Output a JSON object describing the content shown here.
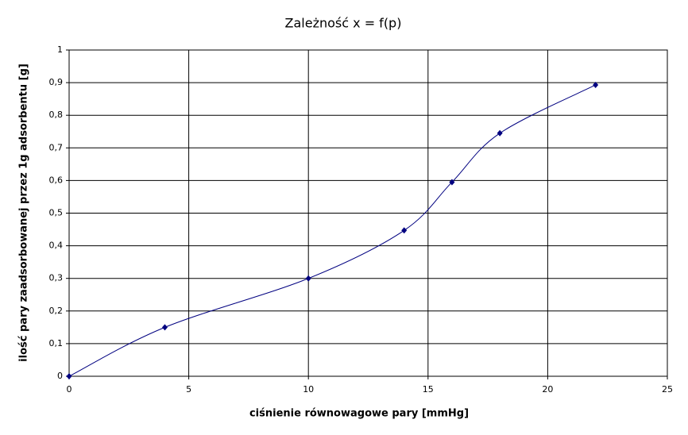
{
  "chart_data": {
    "type": "scatter",
    "title": "Zależność x = f(p)",
    "x_label": "ciśnienie równowagowe pary [mmHg]",
    "y_label": "ilość pary zaadsorbowanej przez 1g adsorbentu [g]",
    "series": [
      {
        "color": "#000080",
        "x": [
          0,
          4,
          10,
          14,
          16,
          18,
          22
        ],
        "values": [
          0,
          0.15,
          0.3,
          0.447,
          0.595,
          0.745,
          0.893
        ]
      }
    ],
    "xlim": [
      0,
      25
    ],
    "xticks": [
      0,
      5,
      10,
      15,
      20,
      25
    ],
    "ylim": [
      0,
      1
    ],
    "yticks": [
      0,
      {
        "value": 0.1,
        "label": "0,1"
      },
      {
        "value": 0.2,
        "label": "0,2"
      },
      {
        "value": 0.3,
        "label": "0,3"
      },
      {
        "value": 0.4,
        "label": "0,4"
      },
      {
        "value": 0.5,
        "label": "0,5"
      },
      {
        "value": 0.6,
        "label": "0,6"
      },
      {
        "value": 0.7,
        "label": "0,7"
      },
      {
        "value": 0.8,
        "label": "0,8"
      },
      {
        "value": 0.9,
        "label": "0,9"
      },
      1
    ],
    "grid": true,
    "smooth": true
  }
}
